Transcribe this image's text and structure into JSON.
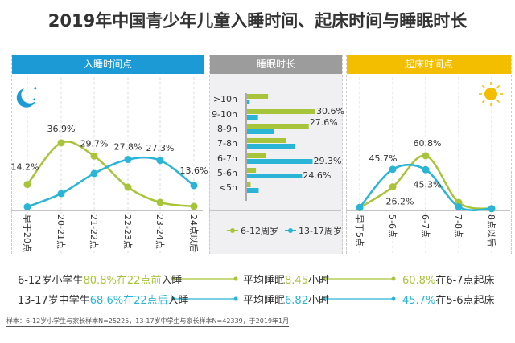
{
  "title": "2019年中国青少年儿童入睡时间、起床时间与睡眠时长",
  "colors": {
    "green": "#a8c43a",
    "blue": "#2ab4d6"
  },
  "chart_data": [
    {
      "type": "line",
      "title": "入睡时间点",
      "categories": [
        "早于20点",
        "20-21点",
        "21-22点",
        "22-23点",
        "23-24点",
        "24点以后"
      ],
      "series": [
        {
          "name": "6-12周岁",
          "values": [
            14.2,
            36.9,
            29.7,
            12.7,
            4.4,
            2.2
          ],
          "labels": [
            "14.2%",
            "36.9%",
            "29.7%",
            "",
            "",
            ""
          ]
        },
        {
          "name": "13-17周岁",
          "values": [
            2,
            9.2,
            20.2,
            27.8,
            27.3,
            13.6
          ],
          "labels": [
            "",
            "",
            "",
            "27.8%",
            "27.3%",
            "13.6%"
          ]
        }
      ],
      "ylim": [
        0,
        40
      ],
      "grid": "vertical dashed",
      "icon": "moon-stars-icon"
    },
    {
      "type": "bar",
      "orientation": "horizontal",
      "title": "睡眠时长",
      "categories": [
        ">10h",
        "9-10h",
        "8-9h",
        "7-8h",
        "6-7h",
        "5-6h",
        "<5h"
      ],
      "series": [
        {
          "name": "6-12周岁",
          "values": [
            9.4,
            30.6,
            27.6,
            17.5,
            8.4,
            4,
            1.6
          ],
          "labels": [
            "",
            "30.6%",
            "27.6%",
            "",
            "",
            "",
            ""
          ]
        },
        {
          "name": "13-17周岁",
          "values": [
            1.2,
            4.9,
            12.1,
            21.6,
            29.3,
            24.6,
            5.2
          ],
          "labels": [
            "",
            "",
            "",
            "",
            "29.3%",
            "24.6%",
            ""
          ]
        }
      ],
      "legend": "bottom"
    },
    {
      "type": "line",
      "title": "起床时间点",
      "categories": [
        "早于5点",
        "5-6点",
        "6-7点",
        "7-8点",
        "8点以后"
      ],
      "series": [
        {
          "name": "6-12周岁",
          "values": [
            3,
            26.2,
            60.8,
            8.9,
            1.9
          ],
          "labels": [
            "",
            "26.2%",
            "60.8%",
            "",
            ""
          ]
        },
        {
          "name": "13-17周岁",
          "values": [
            3.3,
            45.7,
            45.3,
            4,
            2
          ],
          "labels": [
            "",
            "45.7%",
            "45.3%",
            "",
            ""
          ]
        }
      ],
      "ylim": [
        0,
        65
      ],
      "grid": "vertical dashed",
      "icon": "sun-icon"
    }
  ],
  "summary": [
    {
      "a1": "6-12岁小学生",
      "a2": "80.8%在22点前",
      "a3": "入睡",
      "b1": "平均睡眠",
      "b2": "8.45",
      "b3": "小时",
      "c2": "60.8%",
      "c3": "在6-7点起床"
    },
    {
      "a1": "13-17岁中学生",
      "a2": "68.6%在22点后",
      "a3": "入睡",
      "b1": "平均睡眠",
      "b2": "6.82",
      "b3": "小时",
      "c2": "45.7%",
      "c3": "在5-6点起床"
    }
  ],
  "footnote": "样本：6-12岁小学生与家长样本N=25225，13-17岁中学生与家长样本N=42339，于2019年1月"
}
